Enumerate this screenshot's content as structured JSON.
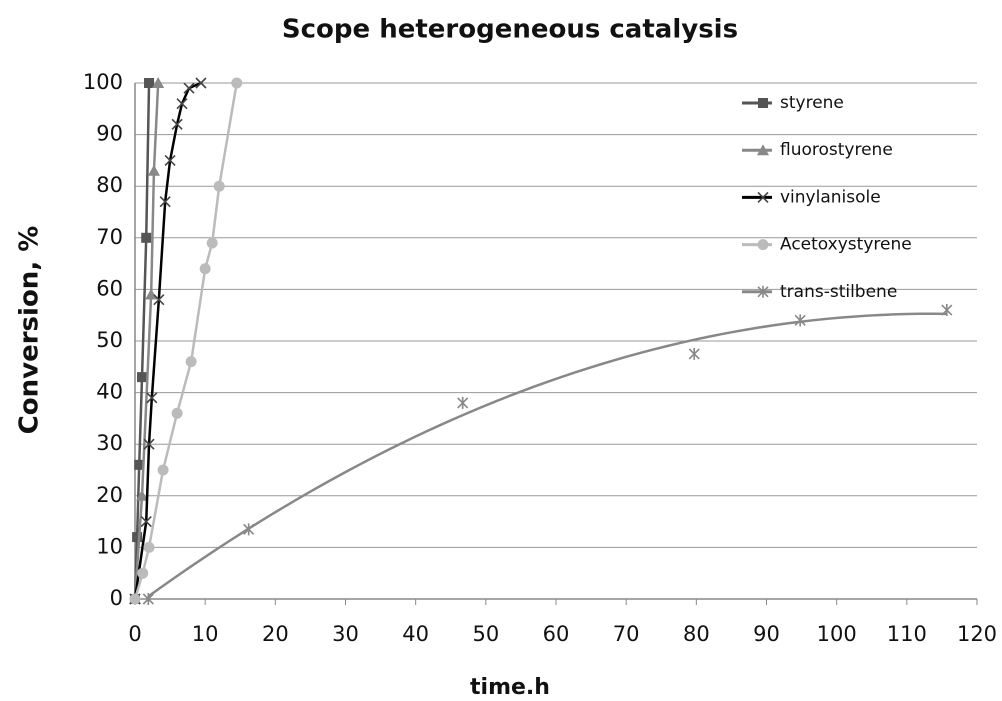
{
  "chart_data": {
    "type": "scatter",
    "title": "Scope heterogeneous catalysis",
    "xlabel": "time.h",
    "ylabel": "Conversion, %",
    "xlim": [
      0,
      120
    ],
    "xticks": [
      0,
      10,
      20,
      30,
      40,
      50,
      60,
      70,
      80,
      90,
      100,
      110,
      120
    ],
    "ylim": [
      0,
      100
    ],
    "yticks": [
      0,
      10,
      20,
      30,
      40,
      50,
      60,
      70,
      80,
      90,
      100
    ],
    "grid": true,
    "legend": "upper right",
    "series": [
      {
        "name": "styrene",
        "color": "#555555",
        "marker": "square",
        "x": [
          0,
          0.3,
          0.6,
          1,
          1.6,
          2
        ],
        "values": [
          0,
          12,
          26,
          43,
          70,
          100
        ]
      },
      {
        "name": "fluorostyrene",
        "color": "#888888",
        "marker": "triangle",
        "x": [
          0,
          1,
          2.3,
          2.7,
          3.3
        ],
        "values": [
          0,
          20,
          59,
          83,
          100
        ]
      },
      {
        "name": "vinylanisole",
        "color": "#444444",
        "line_color": "#000000",
        "marker": "x",
        "x": [
          0,
          1.6,
          2,
          2.4,
          3.4,
          4.3,
          5,
          6,
          6.7,
          7.7,
          9.4
        ],
        "values": [
          0,
          15,
          30,
          39,
          58,
          77,
          85,
          92,
          96,
          99,
          100
        ]
      },
      {
        "name": "Acetoxystyrene",
        "color": "#bbbbbb",
        "marker": "circle",
        "x": [
          0,
          1.1,
          2,
          4,
          6,
          8,
          10,
          11,
          12,
          14.5
        ],
        "values": [
          0,
          5,
          10,
          25,
          36,
          46,
          64,
          69,
          80,
          100
        ]
      },
      {
        "name": "trans-stilbene",
        "color": "#888888",
        "marker": "asterisk",
        "trendline": "polynomial",
        "x": [
          1.9,
          16.2,
          46.7,
          79.7,
          94.8,
          115.7
        ],
        "values": [
          0,
          13.5,
          38,
          47.5,
          54,
          56
        ]
      }
    ]
  }
}
